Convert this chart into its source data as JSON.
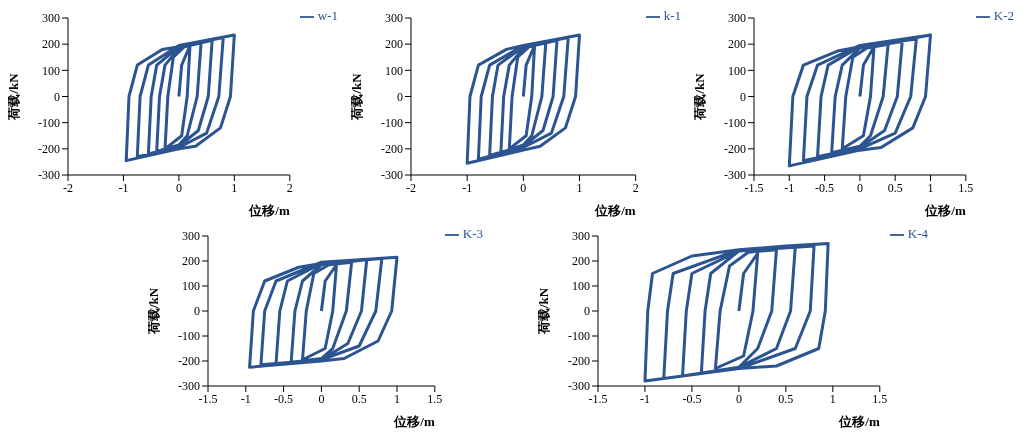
{
  "chart_data": [
    {
      "type": "line",
      "xlabel": "位移/m",
      "ylabel": "荷载/kN",
      "legend": "top right",
      "xlim": [
        -2,
        2
      ],
      "xticks": [
        -2,
        -1,
        0,
        1,
        2
      ],
      "ylim": [
        -300,
        300
      ],
      "yticks": [
        -300,
        -200,
        -100,
        0,
        100,
        200,
        300
      ],
      "x": [
        0,
        0.05,
        0.2,
        0.15,
        0.05,
        -0.25,
        -0.2,
        -0.1,
        0.1,
        0.4,
        0.33,
        0.15,
        0,
        -0.4,
        -0.35,
        -0.25,
        0,
        0.6,
        0.53,
        0.35,
        0,
        -0.55,
        -0.5,
        -0.4,
        0,
        0.8,
        0.72,
        0.5,
        0,
        -0.75,
        -0.7,
        -0.55,
        0,
        1.0,
        0.93,
        0.75,
        0.3,
        0,
        -0.95,
        -0.9,
        -0.75,
        -0.3,
        0,
        0.5,
        1.0
      ],
      "series": [
        {
          "name": "w-1",
          "color": "#2b5490",
          "values": [
            0,
            120,
            195,
            0,
            -150,
            -200,
            0,
            150,
            190,
            205,
            0,
            -150,
            -185,
            -210,
            0,
            120,
            185,
            215,
            0,
            -130,
            -190,
            -220,
            0,
            120,
            190,
            225,
            0,
            -140,
            -195,
            -230,
            0,
            120,
            195,
            235,
            0,
            -120,
            -190,
            -200,
            -245,
            0,
            120,
            180,
            190,
            215,
            235
          ]
        }
      ]
    },
    {
      "type": "line",
      "xlabel": "位移/m",
      "ylabel": "荷载/kN",
      "legend": "top right",
      "xlim": [
        -2,
        2
      ],
      "xticks": [
        -2,
        -1,
        0,
        1,
        2
      ],
      "ylim": [
        -300,
        300
      ],
      "yticks": [
        -300,
        -200,
        -100,
        0,
        100,
        200,
        300
      ],
      "x": [
        0,
        0.05,
        0.2,
        0.15,
        0.05,
        -0.25,
        -0.2,
        -0.1,
        0.1,
        0.4,
        0.33,
        0.15,
        0,
        -0.4,
        -0.35,
        -0.25,
        0,
        0.6,
        0.53,
        0.35,
        0,
        -0.6,
        -0.55,
        -0.45,
        0,
        0.8,
        0.72,
        0.5,
        0,
        -0.8,
        -0.75,
        -0.6,
        0,
        1.0,
        0.93,
        0.75,
        0.3,
        0,
        -1.0,
        -0.95,
        -0.8,
        -0.3,
        0,
        0.5,
        1.0
      ],
      "series": [
        {
          "name": "k-1",
          "color": "#2b5490",
          "values": [
            0,
            120,
            195,
            0,
            -150,
            -200,
            0,
            150,
            190,
            205,
            0,
            -150,
            -185,
            -215,
            0,
            120,
            185,
            215,
            0,
            -130,
            -190,
            -225,
            0,
            120,
            190,
            225,
            0,
            -140,
            -195,
            -240,
            0,
            120,
            195,
            235,
            0,
            -120,
            -190,
            -205,
            -255,
            0,
            120,
            180,
            195,
            215,
            235
          ]
        }
      ]
    },
    {
      "type": "line",
      "xlabel": "位移/m",
      "ylabel": "荷载/kN",
      "legend": "top right",
      "xlim": [
        -1.5,
        1.5
      ],
      "xticks": [
        -1.5,
        -1,
        -0.5,
        0,
        0.5,
        1,
        1.5
      ],
      "ylim": [
        -300,
        300
      ],
      "yticks": [
        -300,
        -200,
        -100,
        0,
        100,
        200,
        300
      ],
      "x": [
        0,
        0.05,
        0.2,
        0.15,
        0.05,
        -0.25,
        -0.2,
        -0.1,
        0.1,
        0.4,
        0.33,
        0.15,
        0,
        -0.4,
        -0.35,
        -0.25,
        0,
        0.6,
        0.53,
        0.35,
        0,
        -0.6,
        -0.55,
        -0.45,
        0,
        0.8,
        0.72,
        0.5,
        0,
        -0.8,
        -0.75,
        -0.6,
        0,
        1.0,
        0.93,
        0.75,
        0.3,
        0,
        -1.0,
        -0.95,
        -0.8,
        -0.3,
        0,
        0.5,
        1.0
      ],
      "series": [
        {
          "name": "K-2",
          "color": "#2b5490",
          "values": [
            0,
            120,
            190,
            0,
            -150,
            -200,
            0,
            150,
            185,
            200,
            0,
            -150,
            -190,
            -215,
            0,
            120,
            185,
            210,
            0,
            -130,
            -195,
            -230,
            0,
            120,
            190,
            220,
            0,
            -140,
            -200,
            -245,
            0,
            120,
            195,
            235,
            0,
            -120,
            -195,
            -205,
            -265,
            0,
            120,
            175,
            190,
            210,
            235
          ]
        }
      ]
    },
    {
      "type": "line",
      "xlabel": "位移/m",
      "ylabel": "荷载/kN",
      "legend": "top right",
      "xlim": [
        -1.5,
        1.5
      ],
      "xticks": [
        -1.5,
        -1,
        -0.5,
        0,
        0.5,
        1,
        1.5
      ],
      "ylim": [
        -300,
        300
      ],
      "yticks": [
        -300,
        -200,
        -100,
        0,
        100,
        200,
        300
      ],
      "x": [
        0,
        0.05,
        0.2,
        0.15,
        0.05,
        -0.25,
        -0.2,
        -0.1,
        0.1,
        0.4,
        0.33,
        0.15,
        0,
        -0.4,
        -0.35,
        -0.25,
        0,
        0.6,
        0.53,
        0.35,
        0,
        -0.6,
        -0.55,
        -0.45,
        0,
        0.8,
        0.72,
        0.5,
        0,
        -0.8,
        -0.75,
        -0.6,
        0,
        1.0,
        0.93,
        0.75,
        0.3,
        0,
        -0.95,
        -0.9,
        -0.75,
        -0.3,
        0,
        0.5,
        1.0
      ],
      "series": [
        {
          "name": "K-3",
          "color": "#2b5490",
          "values": [
            0,
            120,
            185,
            0,
            -150,
            -195,
            0,
            150,
            185,
            195,
            0,
            -150,
            -190,
            -205,
            0,
            120,
            185,
            205,
            0,
            -130,
            -195,
            -210,
            0,
            120,
            190,
            210,
            0,
            -140,
            -195,
            -215,
            0,
            120,
            195,
            215,
            0,
            -120,
            -190,
            -200,
            -225,
            0,
            120,
            175,
            190,
            205,
            215
          ]
        }
      ]
    },
    {
      "type": "line",
      "xlabel": "位移/m",
      "ylabel": "荷载/kN",
      "legend": "top right",
      "xlim": [
        -1.5,
        1.5
      ],
      "xticks": [
        -1.5,
        -1,
        -0.5,
        0,
        0.5,
        1,
        1.5
      ],
      "ylim": [
        -300,
        300
      ],
      "yticks": [
        -300,
        -200,
        -100,
        0,
        100,
        200,
        300
      ],
      "x": [
        0,
        0.05,
        0.2,
        0.15,
        0.05,
        -0.25,
        -0.2,
        -0.1,
        0.1,
        0.4,
        0.35,
        0.2,
        0,
        -0.4,
        -0.36,
        -0.3,
        0,
        0.6,
        0.55,
        0.4,
        0,
        -0.6,
        -0.56,
        -0.5,
        0,
        0.8,
        0.76,
        0.6,
        0,
        -0.8,
        -0.76,
        -0.7,
        0,
        0.95,
        0.92,
        0.85,
        0.4,
        0,
        -1.0,
        -0.97,
        -0.92,
        -0.5,
        0,
        0.5,
        0.95
      ],
      "series": [
        {
          "name": "K-4",
          "color": "#2b5490",
          "values": [
            0,
            150,
            230,
            0,
            -180,
            -230,
            0,
            180,
            235,
            245,
            0,
            -150,
            -225,
            -250,
            0,
            150,
            240,
            255,
            0,
            -150,
            -225,
            -260,
            0,
            150,
            240,
            260,
            0,
            -150,
            -230,
            -270,
            0,
            150,
            245,
            270,
            0,
            -150,
            -220,
            -230,
            -280,
            0,
            150,
            220,
            245,
            260,
            270
          ]
        }
      ]
    }
  ]
}
